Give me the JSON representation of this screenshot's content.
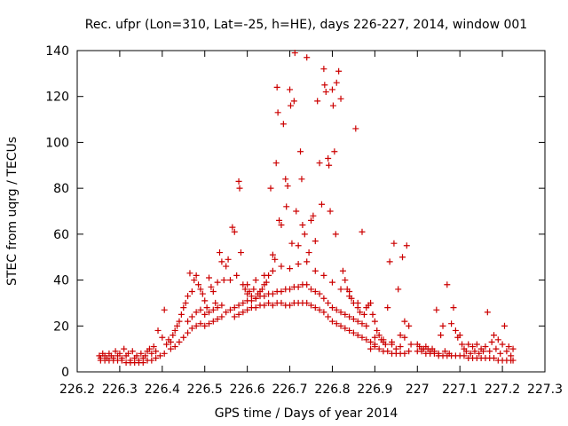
{
  "chart_data": {
    "type": "scatter",
    "title": "Rec. ufpr (Lon=310, Lat=-25, h=HE), days 226-227, 2014, window 001",
    "xlabel": "GPS time / Days of year 2014",
    "ylabel": "STEC from uqrg / TECUs",
    "xlim": [
      226.2,
      227.3
    ],
    "ylim": [
      0,
      140
    ],
    "xticks": [
      "226.2",
      "226.3",
      "226.4",
      "226.5",
      "226.6",
      "226.7",
      "226.8",
      "226.9",
      "227",
      "227.1",
      "227.2",
      "227.3"
    ],
    "yticks": [
      "0",
      "20",
      "40",
      "60",
      "80",
      "100",
      "120",
      "140"
    ],
    "marker": "plus",
    "color": "#cc0000",
    "grid": false,
    "points": [
      [
        226.252,
        7
      ],
      [
        226.255,
        6
      ],
      [
        226.26,
        8
      ],
      [
        226.265,
        7
      ],
      [
        226.27,
        6
      ],
      [
        226.275,
        8
      ],
      [
        226.28,
        7
      ],
      [
        226.285,
        6
      ],
      [
        226.29,
        9
      ],
      [
        226.295,
        7
      ],
      [
        226.3,
        8
      ],
      [
        226.305,
        6
      ],
      [
        226.31,
        10
      ],
      [
        226.315,
        7
      ],
      [
        226.32,
        8
      ],
      [
        226.325,
        5
      ],
      [
        226.33,
        9
      ],
      [
        226.335,
        6
      ],
      [
        226.34,
        7
      ],
      [
        226.345,
        5
      ],
      [
        226.35,
        8
      ],
      [
        226.355,
        6
      ],
      [
        226.36,
        7
      ],
      [
        226.365,
        9
      ],
      [
        226.37,
        10
      ],
      [
        226.375,
        8
      ],
      [
        226.38,
        11
      ],
      [
        226.385,
        9
      ],
      [
        226.255,
        5
      ],
      [
        226.265,
        5
      ],
      [
        226.275,
        5
      ],
      [
        226.285,
        5
      ],
      [
        226.295,
        5
      ],
      [
        226.305,
        5
      ],
      [
        226.315,
        4
      ],
      [
        226.325,
        4
      ],
      [
        226.335,
        4
      ],
      [
        226.345,
        4
      ],
      [
        226.355,
        4
      ],
      [
        226.365,
        5
      ],
      [
        226.375,
        5
      ],
      [
        226.385,
        6
      ],
      [
        226.395,
        7
      ],
      [
        226.405,
        8
      ],
      [
        226.39,
        18
      ],
      [
        226.4,
        15
      ],
      [
        226.405,
        27
      ],
      [
        226.41,
        12
      ],
      [
        226.415,
        14
      ],
      [
        226.42,
        13
      ],
      [
        226.425,
        16
      ],
      [
        226.43,
        18
      ],
      [
        226.435,
        20
      ],
      [
        226.44,
        22
      ],
      [
        226.445,
        25
      ],
      [
        226.45,
        28
      ],
      [
        226.455,
        30
      ],
      [
        226.46,
        33
      ],
      [
        226.465,
        43
      ],
      [
        226.47,
        35
      ],
      [
        226.475,
        40
      ],
      [
        226.48,
        42
      ],
      [
        226.485,
        38
      ],
      [
        226.49,
        36
      ],
      [
        226.495,
        34
      ],
      [
        226.5,
        31
      ],
      [
        226.505,
        28
      ],
      [
        226.51,
        41
      ],
      [
        226.515,
        37
      ],
      [
        226.52,
        35
      ],
      [
        226.525,
        30
      ],
      [
        226.53,
        39
      ],
      [
        226.535,
        52
      ],
      [
        226.54,
        48
      ],
      [
        226.545,
        40
      ],
      [
        226.42,
        10
      ],
      [
        226.43,
        11
      ],
      [
        226.44,
        13
      ],
      [
        226.45,
        15
      ],
      [
        226.46,
        17
      ],
      [
        226.47,
        19
      ],
      [
        226.48,
        20
      ],
      [
        226.49,
        21
      ],
      [
        226.5,
        20
      ],
      [
        226.51,
        21
      ],
      [
        226.52,
        22
      ],
      [
        226.53,
        23
      ],
      [
        226.54,
        24
      ],
      [
        226.55,
        26
      ],
      [
        226.56,
        27
      ],
      [
        226.46,
        22
      ],
      [
        226.47,
        24
      ],
      [
        226.48,
        26
      ],
      [
        226.49,
        27
      ],
      [
        226.5,
        25
      ],
      [
        226.51,
        26
      ],
      [
        226.52,
        27
      ],
      [
        226.53,
        28
      ],
      [
        226.54,
        29
      ],
      [
        226.55,
        46
      ],
      [
        226.555,
        49
      ],
      [
        226.56,
        40
      ],
      [
        226.565,
        63
      ],
      [
        226.57,
        61
      ],
      [
        226.575,
        42
      ],
      [
        226.58,
        83
      ],
      [
        226.582,
        80
      ],
      [
        226.585,
        52
      ],
      [
        226.59,
        38
      ],
      [
        226.595,
        36
      ],
      [
        226.6,
        34
      ],
      [
        226.605,
        35
      ],
      [
        226.61,
        33
      ],
      [
        226.615,
        36
      ],
      [
        226.62,
        32
      ],
      [
        226.625,
        34
      ],
      [
        226.63,
        35
      ],
      [
        226.635,
        36
      ],
      [
        226.64,
        38
      ],
      [
        226.645,
        39
      ],
      [
        226.65,
        42
      ],
      [
        226.655,
        80
      ],
      [
        226.66,
        51
      ],
      [
        226.665,
        49
      ],
      [
        226.668,
        91
      ],
      [
        226.67,
        124
      ],
      [
        226.672,
        113
      ],
      [
        226.675,
        66
      ],
      [
        226.68,
        64
      ],
      [
        226.685,
        108
      ],
      [
        226.69,
        84
      ],
      [
        226.692,
        72
      ],
      [
        226.695,
        81
      ],
      [
        226.7,
        123
      ],
      [
        226.702,
        116
      ],
      [
        226.705,
        56
      ],
      [
        226.71,
        118
      ],
      [
        226.712,
        139
      ],
      [
        226.715,
        70
      ],
      [
        226.72,
        55
      ],
      [
        226.725,
        96
      ],
      [
        226.728,
        84
      ],
      [
        226.73,
        64
      ],
      [
        226.735,
        60
      ],
      [
        226.74,
        137
      ],
      [
        226.745,
        52
      ],
      [
        226.75,
        66
      ],
      [
        226.755,
        68
      ],
      [
        226.76,
        57
      ],
      [
        226.765,
        118
      ],
      [
        226.77,
        91
      ],
      [
        226.775,
        73
      ],
      [
        226.78,
        132
      ],
      [
        226.782,
        125
      ],
      [
        226.785,
        122
      ],
      [
        226.79,
        93
      ],
      [
        226.792,
        90
      ],
      [
        226.795,
        70
      ],
      [
        226.8,
        123
      ],
      [
        226.802,
        116
      ],
      [
        226.805,
        96
      ],
      [
        226.808,
        60
      ],
      [
        226.81,
        126
      ],
      [
        226.815,
        131
      ],
      [
        226.82,
        119
      ],
      [
        226.825,
        44
      ],
      [
        226.83,
        40
      ],
      [
        226.835,
        36
      ],
      [
        226.84,
        35
      ],
      [
        226.845,
        32
      ],
      [
        226.85,
        30
      ],
      [
        226.855,
        106
      ],
      [
        226.86,
        28
      ],
      [
        226.865,
        26
      ],
      [
        226.87,
        61
      ],
      [
        226.875,
        25
      ],
      [
        226.88,
        28
      ],
      [
        226.885,
        29
      ],
      [
        226.57,
        28
      ],
      [
        226.58,
        29
      ],
      [
        226.59,
        30
      ],
      [
        226.6,
        31
      ],
      [
        226.61,
        31
      ],
      [
        226.62,
        32
      ],
      [
        226.63,
        33
      ],
      [
        226.64,
        33
      ],
      [
        226.65,
        34
      ],
      [
        226.66,
        34
      ],
      [
        226.67,
        35
      ],
      [
        226.68,
        35
      ],
      [
        226.69,
        36
      ],
      [
        226.7,
        36
      ],
      [
        226.71,
        37
      ],
      [
        226.72,
        37
      ],
      [
        226.73,
        38
      ],
      [
        226.74,
        38
      ],
      [
        226.75,
        36
      ],
      [
        226.76,
        35
      ],
      [
        226.77,
        34
      ],
      [
        226.78,
        32
      ],
      [
        226.79,
        30
      ],
      [
        226.8,
        28
      ],
      [
        226.81,
        27
      ],
      [
        226.82,
        26
      ],
      [
        226.83,
        25
      ],
      [
        226.84,
        24
      ],
      [
        226.85,
        23
      ],
      [
        226.86,
        22
      ],
      [
        226.87,
        21
      ],
      [
        226.88,
        20
      ],
      [
        226.57,
        24
      ],
      [
        226.58,
        25
      ],
      [
        226.59,
        26
      ],
      [
        226.6,
        27
      ],
      [
        226.61,
        28
      ],
      [
        226.62,
        28
      ],
      [
        226.63,
        29
      ],
      [
        226.64,
        29
      ],
      [
        226.65,
        30
      ],
      [
        226.66,
        29
      ],
      [
        226.67,
        30
      ],
      [
        226.68,
        30
      ],
      [
        226.69,
        29
      ],
      [
        226.7,
        29
      ],
      [
        226.71,
        30
      ],
      [
        226.72,
        30
      ],
      [
        226.73,
        30
      ],
      [
        226.74,
        30
      ],
      [
        226.75,
        29
      ],
      [
        226.76,
        28
      ],
      [
        226.77,
        27
      ],
      [
        226.78,
        26
      ],
      [
        226.79,
        24
      ],
      [
        226.8,
        22
      ],
      [
        226.81,
        21
      ],
      [
        226.82,
        20
      ],
      [
        226.83,
        19
      ],
      [
        226.84,
        18
      ],
      [
        226.85,
        17
      ],
      [
        226.86,
        16
      ],
      [
        226.87,
        15
      ],
      [
        226.88,
        14
      ],
      [
        226.89,
        13
      ],
      [
        226.9,
        12
      ],
      [
        226.6,
        38
      ],
      [
        226.62,
        40
      ],
      [
        226.64,
        42
      ],
      [
        226.66,
        44
      ],
      [
        226.68,
        46
      ],
      [
        226.7,
        45
      ],
      [
        226.72,
        47
      ],
      [
        226.74,
        48
      ],
      [
        226.76,
        44
      ],
      [
        226.78,
        42
      ],
      [
        226.8,
        39
      ],
      [
        226.82,
        36
      ],
      [
        226.84,
        33
      ],
      [
        226.86,
        30
      ],
      [
        226.89,
        30
      ],
      [
        226.895,
        25
      ],
      [
        226.9,
        22
      ],
      [
        226.905,
        18
      ],
      [
        226.91,
        16
      ],
      [
        226.915,
        14
      ],
      [
        226.92,
        13
      ],
      [
        226.925,
        12
      ],
      [
        226.93,
        28
      ],
      [
        226.935,
        48
      ],
      [
        226.94,
        12
      ],
      [
        226.945,
        56
      ],
      [
        226.95,
        10
      ],
      [
        226.955,
        36
      ],
      [
        226.96,
        11
      ],
      [
        226.965,
        50
      ],
      [
        226.97,
        15
      ],
      [
        226.975,
        55
      ],
      [
        226.98,
        9
      ],
      [
        226.985,
        12
      ],
      [
        226.89,
        10
      ],
      [
        226.9,
        11
      ],
      [
        226.91,
        10
      ],
      [
        226.92,
        9
      ],
      [
        226.93,
        9
      ],
      [
        226.94,
        8
      ],
      [
        226.95,
        8
      ],
      [
        226.96,
        8
      ],
      [
        226.97,
        8
      ],
      [
        226.9,
        15
      ],
      [
        226.92,
        14
      ],
      [
        226.94,
        13
      ],
      [
        226.96,
        16
      ],
      [
        226.97,
        22
      ],
      [
        226.98,
        20
      ],
      [
        227.0,
        12
      ],
      [
        227.005,
        11
      ],
      [
        227.01,
        10
      ],
      [
        227.015,
        10
      ],
      [
        227.02,
        11
      ],
      [
        227.025,
        10
      ],
      [
        227.03,
        9
      ],
      [
        227.035,
        10
      ],
      [
        227.04,
        9
      ],
      [
        227.045,
        27
      ],
      [
        227.05,
        8
      ],
      [
        227.055,
        16
      ],
      [
        227.06,
        20
      ],
      [
        227.065,
        9
      ],
      [
        227.07,
        38
      ],
      [
        227.075,
        8
      ],
      [
        227.08,
        21
      ],
      [
        227.085,
        28
      ],
      [
        227.09,
        18
      ],
      [
        227.095,
        15
      ],
      [
        227.1,
        16
      ],
      [
        227.105,
        12
      ],
      [
        227.11,
        10
      ],
      [
        227.115,
        9
      ],
      [
        227.12,
        12
      ],
      [
        227.125,
        8
      ],
      [
        227.13,
        11
      ],
      [
        227.135,
        9
      ],
      [
        227.14,
        12
      ],
      [
        227.145,
        8
      ],
      [
        227.15,
        10
      ],
      [
        227.155,
        9
      ],
      [
        227.16,
        11
      ],
      [
        227.165,
        26
      ],
      [
        227.17,
        9
      ],
      [
        227.175,
        13
      ],
      [
        227.18,
        16
      ],
      [
        227.185,
        10
      ],
      [
        227.19,
        14
      ],
      [
        227.195,
        8
      ],
      [
        227.2,
        12
      ],
      [
        227.205,
        20
      ],
      [
        227.21,
        9
      ],
      [
        227.215,
        11
      ],
      [
        227.22,
        7
      ],
      [
        227.225,
        10
      ],
      [
        227.0,
        9
      ],
      [
        227.01,
        9
      ],
      [
        227.02,
        8
      ],
      [
        227.03,
        8
      ],
      [
        227.04,
        8
      ],
      [
        227.05,
        7
      ],
      [
        227.06,
        7
      ],
      [
        227.07,
        7
      ],
      [
        227.08,
        7
      ],
      [
        227.09,
        7
      ],
      [
        227.1,
        7
      ],
      [
        227.11,
        7
      ],
      [
        227.12,
        6
      ],
      [
        227.13,
        6
      ],
      [
        227.14,
        6
      ],
      [
        227.15,
        6
      ],
      [
        227.16,
        6
      ],
      [
        227.17,
        6
      ],
      [
        227.18,
        6
      ],
      [
        227.19,
        5
      ],
      [
        227.2,
        5
      ],
      [
        227.21,
        5
      ],
      [
        227.22,
        5
      ],
      [
        227.225,
        5
      ]
    ]
  }
}
